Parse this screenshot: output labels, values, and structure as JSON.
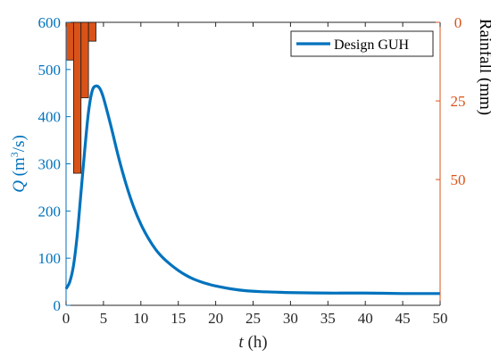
{
  "chart_data": {
    "type": "line",
    "title": "",
    "xlabel": {
      "var": "t",
      "unit": " (h)"
    },
    "ylabel": {
      "var": "Q",
      "unit_prefix": " (m",
      "unit_sup": "3",
      "unit_suffix": "/s)"
    },
    "y2label": "Rainfall (mm)",
    "xlim": [
      0,
      50
    ],
    "ylim": [
      0,
      600
    ],
    "y2lim_reversed": [
      0,
      90
    ],
    "xticks": [
      0,
      5,
      10,
      15,
      20,
      25,
      30,
      35,
      40,
      45,
      50
    ],
    "yticks": [
      0,
      100,
      200,
      300,
      400,
      500,
      600
    ],
    "y2ticks": [
      0,
      25,
      50
    ],
    "grid": false,
    "legend": {
      "position": "top-right",
      "entries": [
        "Design GUH"
      ]
    },
    "series": [
      {
        "name": "Design GUH",
        "kind": "line",
        "axis": "left",
        "color": "#0072BD",
        "x": [
          0,
          0.5,
          1,
          1.5,
          2,
          2.5,
          3,
          3.5,
          4,
          4.5,
          5,
          6,
          7,
          8,
          9,
          10,
          11,
          12,
          13,
          14,
          15,
          16,
          17,
          18,
          19,
          20,
          22,
          24,
          26,
          28,
          30,
          35,
          40,
          45,
          50
        ],
        "y": [
          35,
          50,
          85,
          150,
          240,
          330,
          410,
          455,
          465,
          460,
          440,
          380,
          315,
          258,
          210,
          172,
          142,
          118,
          100,
          86,
          74,
          64,
          56,
          50,
          45,
          41,
          35,
          31,
          29,
          28,
          27,
          26,
          26,
          25,
          25
        ]
      },
      {
        "name": "",
        "kind": "bar",
        "axis": "right",
        "color": "#D95319",
        "bar_width": 1,
        "x": [
          0.5,
          1.5,
          2.5,
          3.5
        ],
        "y": [
          12,
          48,
          24,
          6
        ]
      }
    ],
    "colors": {
      "left_axis": "#0072BD",
      "right_axis": "#D95319",
      "frame": "#262626"
    }
  }
}
